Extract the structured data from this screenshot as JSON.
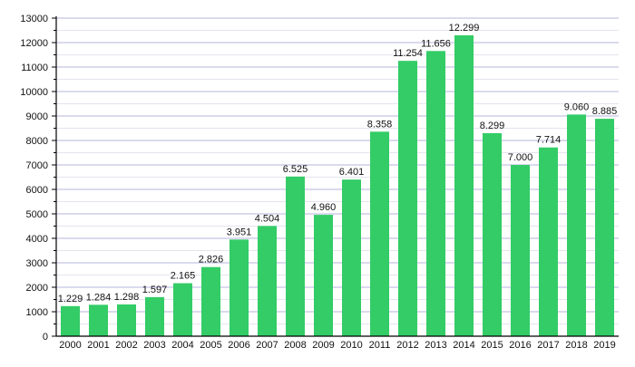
{
  "chart_data": {
    "type": "bar",
    "title": "",
    "xlabel": "",
    "ylabel": "",
    "categories": [
      "2000",
      "2001",
      "2002",
      "2003",
      "2004",
      "2005",
      "2006",
      "2007",
      "2008",
      "2009",
      "2010",
      "2011",
      "2012",
      "2013",
      "2014",
      "2015",
      "2016",
      "2017",
      "2018",
      "2019"
    ],
    "values": [
      1229,
      1284,
      1298,
      1597,
      2165,
      2826,
      3951,
      4504,
      6525,
      4960,
      6401,
      8358,
      11254,
      11656,
      12299,
      8299,
      7000,
      7714,
      9060,
      8885
    ],
    "value_labels": [
      "1.229",
      "1.284",
      "1.298",
      "1.597",
      "2.165",
      "2.826",
      "3.951",
      "4.504",
      "6.525",
      "4.960",
      "6.401",
      "8.358",
      "11.254",
      "11.656",
      "12.299",
      "8.299",
      "7.000",
      "7.714",
      "9.060",
      "8.885"
    ],
    "ylim": [
      0,
      13000
    ],
    "yticks": [
      "0",
      "1000",
      "2000",
      "3000",
      "4000",
      "5000",
      "6000",
      "7000",
      "8000",
      "9000",
      "10000",
      "11000",
      "12000",
      "13000"
    ],
    "grid": true,
    "colors": {
      "bar": "#33cc66",
      "grid": "#b4b4dc",
      "minor_grid": "#e4e4ee",
      "axis": "#000000"
    }
  }
}
